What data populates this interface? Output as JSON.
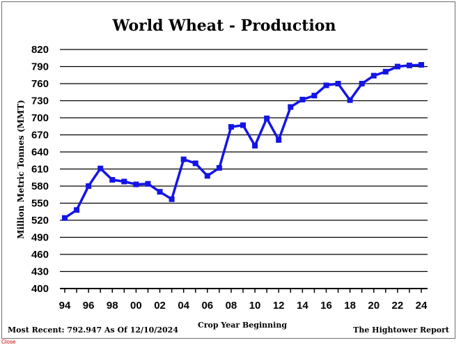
{
  "colors": {
    "series": "#1414e6",
    "grid": "#000000",
    "background": "#ffffff"
  },
  "footer": {
    "most_recent": "Most Recent: 792.947 As Of 12/10/2024",
    "source": "The Hightower Report"
  },
  "close_label": "Close",
  "chart_data": {
    "type": "line",
    "title": "World Wheat - Production",
    "xlabel": "Crop Year Beginning",
    "ylabel": "Million Metric Tonnes (MMT)",
    "ylim": [
      400,
      820
    ],
    "grid": true,
    "yticks": [
      400,
      430,
      460,
      490,
      520,
      550,
      580,
      610,
      640,
      670,
      700,
      730,
      760,
      790,
      820
    ],
    "xtick_labels": [
      "94",
      "96",
      "98",
      "00",
      "02",
      "04",
      "06",
      "08",
      "10",
      "12",
      "14",
      "16",
      "18",
      "20",
      "22",
      "24"
    ],
    "x": [
      "94",
      "95",
      "96",
      "97",
      "98",
      "99",
      "00",
      "01",
      "02",
      "03",
      "04",
      "05",
      "06",
      "07",
      "08",
      "09",
      "10",
      "11",
      "12",
      "13",
      "14",
      "15",
      "16",
      "17",
      "18",
      "19",
      "20",
      "21",
      "22",
      "23",
      "24"
    ],
    "series": [
      {
        "values": [
          524,
          538,
          580,
          611,
          591,
          588,
          583,
          584,
          570,
          557,
          627,
          620,
          598,
          612,
          684,
          687,
          651,
          699,
          661,
          719,
          732,
          739,
          757,
          760,
          731,
          760,
          774,
          781,
          790,
          792,
          793
        ]
      }
    ]
  }
}
